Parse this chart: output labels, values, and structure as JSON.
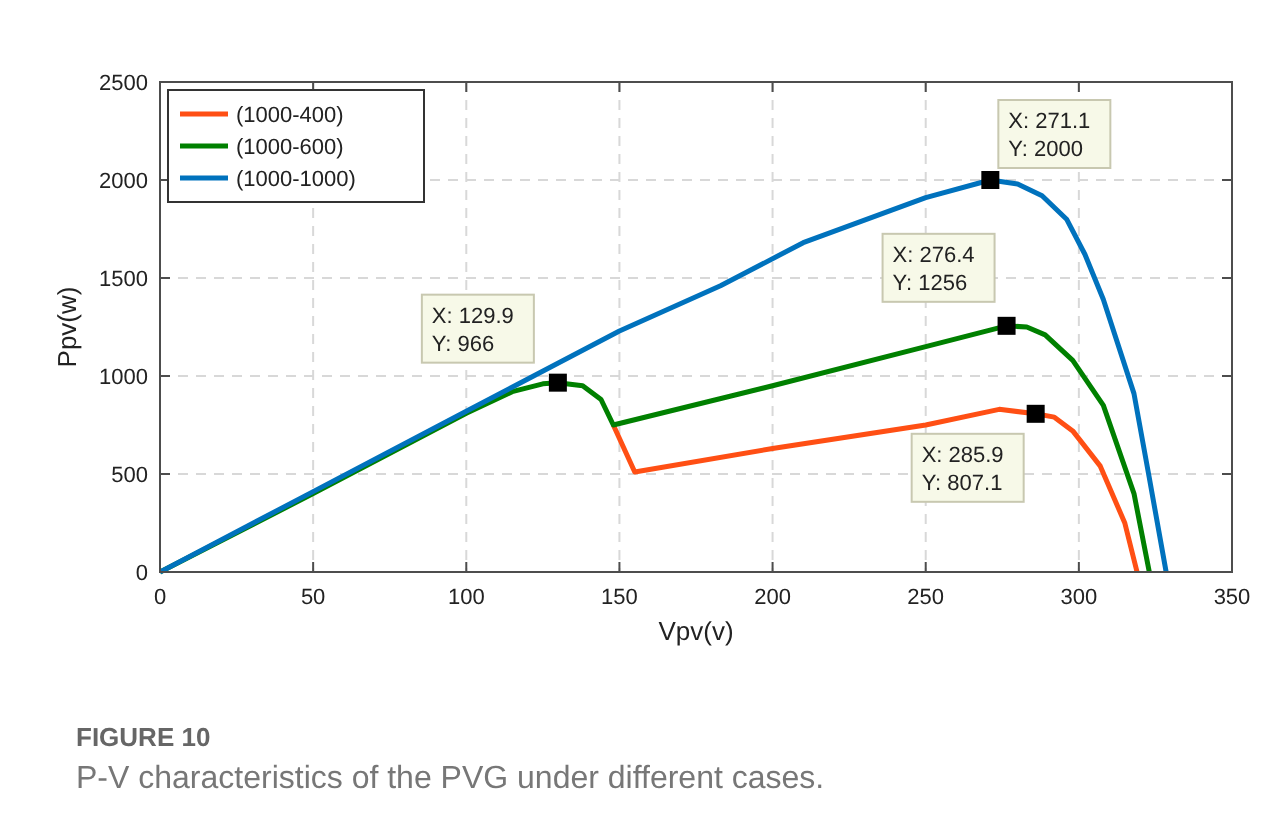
{
  "chart_data": {
    "type": "line",
    "title": "FIGURE 10",
    "subtitle": "P-V characteristics of the PVG under different cases.",
    "xlabel": "Vpv(v)",
    "ylabel": "Ppv(w)",
    "xlim": [
      0,
      350
    ],
    "ylim": [
      0,
      2500
    ],
    "xticks": [
      0,
      50,
      100,
      150,
      200,
      250,
      300,
      350
    ],
    "yticks": [
      0,
      500,
      1000,
      1500,
      2000,
      2500
    ],
    "grid": true,
    "legend": "top left",
    "line_style": "solid",
    "marker": "none",
    "series": [
      {
        "name": "(1000-400)",
        "color": "#ff4f14",
        "x": [
          148,
          155,
          200,
          250,
          274,
          285.9,
          292,
          298,
          307,
          315,
          319
        ],
        "values": [
          750,
          510,
          630,
          750,
          830,
          807.1,
          790,
          720,
          540,
          250,
          0
        ]
      },
      {
        "name": "(1000-600)",
        "color": "#008000",
        "x": [
          0,
          50,
          100,
          115,
          125,
          129.9,
          138,
          144,
          148,
          200,
          250,
          276.4,
          283,
          289,
          298,
          308,
          318,
          323
        ],
        "values": [
          0,
          400,
          810,
          920,
          960,
          966,
          950,
          880,
          750,
          950,
          1150,
          1256,
          1250,
          1210,
          1080,
          850,
          400,
          0
        ]
      },
      {
        "name": "(1000-1000)",
        "color": "#0072bd",
        "x": [
          0,
          50,
          100,
          150,
          183,
          210,
          250,
          271.1,
          280,
          288,
          296,
          302,
          308,
          318,
          323,
          328.5
        ],
        "values": [
          0,
          410,
          820,
          1230,
          1460,
          1680,
          1910,
          2000,
          1980,
          1920,
          1800,
          1620,
          1390,
          910,
          480,
          0
        ]
      }
    ],
    "annotations": [
      {
        "text": "X: 129.9\nY: 966",
        "x": 129.9,
        "y": 966
      },
      {
        "text": "X: 271.1\nY: 2000",
        "x": 271.1,
        "y": 2000
      },
      {
        "text": "X: 276.4\nY: 1256",
        "x": 276.4,
        "y": 1256
      },
      {
        "text": "X: 285.9\nY: 807.1",
        "x": 285.9,
        "y": 807.1
      }
    ]
  }
}
